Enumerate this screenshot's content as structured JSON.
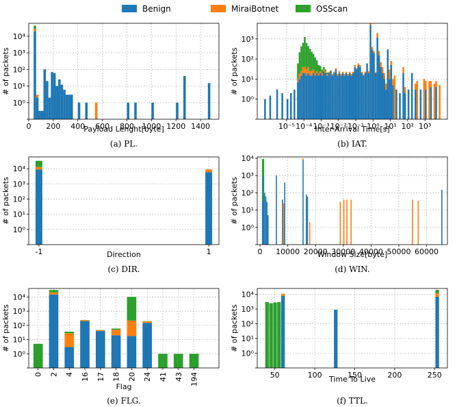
{
  "legend": [
    {
      "name": "Benign",
      "color": "#1f77b4"
    },
    {
      "name": "MiraiBotnet",
      "color": "#ff7f0e"
    },
    {
      "name": "OSScan",
      "color": "#2ca02c"
    }
  ],
  "chart_data": [
    {
      "id": "pl",
      "type": "bar",
      "title": "",
      "caption": "(a) PL.",
      "xlabel": "Payload Lenght[byte]",
      "ylabel": "# of packets",
      "xscale": "linear",
      "xlim": [
        0,
        1550
      ],
      "yscale": "symlog",
      "ylim": [
        0,
        60000
      ],
      "xticks": [
        0,
        200,
        400,
        600,
        800,
        1000,
        1200,
        1400
      ],
      "xtick_labels": [
        "0",
        "200",
        "400",
        "600",
        "800",
        "1000",
        "1200",
        "1400"
      ],
      "yticks": [
        1,
        10,
        100,
        1000,
        10000
      ],
      "ytick_labels": [
        "10⁰",
        "10¹",
        "10²",
        "10³",
        "10⁴"
      ],
      "bins": [
        {
          "x0": 40,
          "x1": 60,
          "b": 20000,
          "m": 8000,
          "o": 15000
        },
        {
          "x0": 60,
          "x1": 80,
          "b": 2,
          "m": 1
        },
        {
          "x0": 80,
          "x1": 100,
          "b": 0.5
        },
        {
          "x0": 100,
          "x1": 120,
          "b": 0.5
        },
        {
          "x0": 120,
          "x1": 140,
          "b": 100
        },
        {
          "x0": 140,
          "x1": 160,
          "b": 20
        },
        {
          "x0": 160,
          "x1": 180,
          "b": 2
        },
        {
          "x0": 180,
          "x1": 200,
          "b": 70
        },
        {
          "x0": 200,
          "x1": 220,
          "b": 60
        },
        {
          "x0": 220,
          "x1": 240,
          "b": 10
        },
        {
          "x0": 240,
          "x1": 260,
          "b": 25
        },
        {
          "x0": 260,
          "x1": 280,
          "b": 12
        },
        {
          "x0": 280,
          "x1": 300,
          "b": 6
        },
        {
          "x0": 300,
          "x1": 320,
          "b": 3
        },
        {
          "x0": 320,
          "x1": 340,
          "b": 3
        },
        {
          "x0": 340,
          "x1": 360,
          "b": 3
        },
        {
          "x0": 400,
          "x1": 420,
          "b": 1
        },
        {
          "x0": 460,
          "x1": 480,
          "b": 1
        },
        {
          "x0": 540,
          "x1": 560,
          "m": 1
        },
        {
          "x0": 800,
          "x1": 820,
          "b": 1
        },
        {
          "x0": 860,
          "x1": 880,
          "b": 1
        },
        {
          "x0": 1000,
          "x1": 1020,
          "b": 1
        },
        {
          "x0": 1200,
          "x1": 1220,
          "b": 1
        },
        {
          "x0": 1260,
          "x1": 1280,
          "b": 40
        },
        {
          "x0": 1460,
          "x1": 1480,
          "b": 15
        }
      ]
    },
    {
      "id": "iat",
      "type": "bar",
      "title": "",
      "caption": "(b) IAT.",
      "xlabel": "Inter-Arrival Time[s]",
      "ylabel": "# of packets",
      "xscale": "log",
      "xlim": [
        -6.7,
        4.3
      ],
      "yscale": "symlog",
      "ylim": [
        0,
        6000
      ],
      "xticks": [
        -5,
        -4,
        -3,
        -2,
        -1,
        0,
        1,
        2,
        3
      ],
      "xtick_labels": [
        "10⁻⁵",
        "10⁻⁴",
        "10⁻³",
        "10⁻²",
        "10⁻¹",
        "10⁰",
        "10¹",
        "10²",
        "10³"
      ],
      "yticks": [
        1,
        10,
        100,
        1000
      ],
      "ytick_labels": [
        "10⁰",
        "10¹",
        "10²",
        "10³"
      ],
      "bins": [
        {
          "x0": -6.3,
          "x1": -6.2,
          "b": 1
        },
        {
          "x0": -6.0,
          "x1": -5.9,
          "b": 1.5
        },
        {
          "x0": -5.6,
          "x1": -5.5,
          "b": 3
        },
        {
          "x0": -5.3,
          "x1": -5.2,
          "b": 2
        },
        {
          "x0": -5.0,
          "x1": -4.9,
          "b": 1
        },
        {
          "x0": -4.8,
          "x1": -4.7,
          "b": 2
        },
        {
          "x0": -4.6,
          "x1": -4.5,
          "b": 3
        },
        {
          "x0": -4.4,
          "x1": -4.3,
          "b": 7,
          "m": 3,
          "o": 50
        },
        {
          "x0": -4.3,
          "x1": -4.2,
          "b": 10,
          "m": 8,
          "o": 200
        },
        {
          "x0": -4.2,
          "x1": -4.1,
          "b": 15,
          "m": 10,
          "o": 400
        },
        {
          "x0": -4.1,
          "x1": -4.0,
          "b": 20,
          "m": 20,
          "o": 600
        },
        {
          "x0": -4.0,
          "x1": -3.9,
          "b": 20,
          "m": 20,
          "o": 1200
        },
        {
          "x0": -3.9,
          "x1": -3.8,
          "b": 15,
          "m": 15,
          "o": 600
        },
        {
          "x0": -3.8,
          "x1": -3.7,
          "b": 20,
          "m": 20,
          "o": 400
        },
        {
          "x0": -3.7,
          "x1": -3.6,
          "b": 15,
          "m": 10,
          "o": 300
        },
        {
          "x0": -3.6,
          "x1": -3.5,
          "b": 15,
          "m": 10,
          "o": 200
        },
        {
          "x0": -3.5,
          "x1": -3.4,
          "b": 20,
          "m": 10,
          "o": 150
        },
        {
          "x0": -3.4,
          "x1": -3.3,
          "b": 15,
          "m": 5,
          "o": 100
        },
        {
          "x0": -3.3,
          "x1": -3.2,
          "b": 20,
          "m": 5,
          "o": 60
        },
        {
          "x0": -3.2,
          "x1": -3.1,
          "b": 15,
          "m": 5,
          "o": 30
        },
        {
          "x0": -3.1,
          "x1": -3.0,
          "b": 20,
          "m": 5,
          "o": 20
        },
        {
          "x0": -3.0,
          "x1": -2.9,
          "b": 15,
          "m": 5,
          "o": 10
        },
        {
          "x0": -2.9,
          "x1": -2.8,
          "b": 25,
          "m": 5,
          "o": 10
        },
        {
          "x0": -2.8,
          "x1": -2.7,
          "b": 20,
          "m": 5,
          "o": 5
        },
        {
          "x0": -2.7,
          "x1": -2.6,
          "b": 15,
          "m": 3,
          "o": 3
        },
        {
          "x0": -2.6,
          "x1": -2.5,
          "b": 20,
          "m": 3
        },
        {
          "x0": -2.5,
          "x1": -2.4,
          "b": 25,
          "m": 3
        },
        {
          "x0": -2.4,
          "x1": -2.3,
          "b": 15,
          "m": 3
        },
        {
          "x0": -2.3,
          "x1": -2.2,
          "b": 20,
          "m": 3
        },
        {
          "x0": -2.2,
          "x1": -2.1,
          "b": 30,
          "m": 5
        },
        {
          "x0": -2.1,
          "x1": -2.0,
          "b": 15,
          "m": 3
        },
        {
          "x0": -2.0,
          "x1": -1.9,
          "b": 20,
          "m": 5
        },
        {
          "x0": -1.9,
          "x1": -1.8,
          "b": 15,
          "m": 3
        },
        {
          "x0": -1.8,
          "x1": -1.7,
          "b": 20,
          "m": 3
        },
        {
          "x0": -1.7,
          "x1": -1.6,
          "b": 15,
          "m": 3
        },
        {
          "x0": -1.6,
          "x1": -1.5,
          "b": 20,
          "m": 3
        },
        {
          "x0": -1.5,
          "x1": -1.4,
          "b": 15,
          "m": 3
        },
        {
          "x0": -1.4,
          "x1": -1.3,
          "b": 20,
          "m": 3
        },
        {
          "x0": -1.3,
          "x1": -1.2,
          "b": 15,
          "m": 3
        },
        {
          "x0": -1.2,
          "x1": -1.1,
          "b": 20,
          "m": 3
        },
        {
          "x0": -1.1,
          "x1": -1.0,
          "b": 40,
          "m": 10
        },
        {
          "x0": -1.0,
          "x1": -0.9,
          "b": 30,
          "m": 5
        },
        {
          "x0": -0.9,
          "x1": -0.8,
          "b": 50,
          "m": 10
        },
        {
          "x0": -0.8,
          "x1": -0.7,
          "b": 40,
          "m": 10
        },
        {
          "x0": -0.7,
          "x1": -0.6,
          "b": 20,
          "m": 3
        },
        {
          "x0": -0.6,
          "x1": -0.5,
          "b": 15,
          "m": 2
        },
        {
          "x0": -0.5,
          "x1": -0.4,
          "b": 20,
          "m": 3
        },
        {
          "x0": -0.4,
          "x1": -0.3,
          "b": 60
        },
        {
          "x0": -0.3,
          "x1": -0.2,
          "b": 20,
          "m": 5
        },
        {
          "x0": -0.2,
          "x1": -0.1,
          "b": 5000,
          "m": 2000
        },
        {
          "x0": -0.1,
          "x1": 0.0,
          "b": 300,
          "m": 100
        },
        {
          "x0": 0.0,
          "x1": 0.1,
          "b": 200,
          "m": 50
        },
        {
          "x0": 0.1,
          "x1": 0.2,
          "b": 20,
          "m": 2
        },
        {
          "x0": 0.2,
          "x1": 0.3,
          "b": 1200,
          "m": 800
        },
        {
          "x0": 0.3,
          "x1": 0.4,
          "b": 150,
          "m": 100
        },
        {
          "x0": 0.4,
          "x1": 0.5,
          "b": 40,
          "m": 30
        },
        {
          "x0": 0.5,
          "x1": 0.6,
          "b": 20,
          "m": 20
        },
        {
          "x0": 0.6,
          "x1": 0.7,
          "b": 10,
          "m": 10
        },
        {
          "x0": 0.7,
          "x1": 0.8,
          "b": 3,
          "m": 3
        },
        {
          "x0": 0.8,
          "x1": 0.9,
          "b": 300
        },
        {
          "x0": 0.9,
          "x1": 1.0,
          "b": 10,
          "m": 20
        },
        {
          "x0": 1.0,
          "x1": 1.1,
          "b": 50,
          "m": 30
        },
        {
          "x0": 1.1,
          "x1": 1.2,
          "b": 5,
          "m": 5
        },
        {
          "x0": 1.2,
          "x1": 1.3,
          "m": 15
        },
        {
          "x0": 1.3,
          "x1": 1.4,
          "b": 3
        },
        {
          "x0": 1.5,
          "x1": 1.6,
          "b": 2
        },
        {
          "x0": 1.7,
          "x1": 1.8,
          "b": 20,
          "m": 20
        },
        {
          "x0": 1.8,
          "x1": 1.9,
          "b": 2,
          "m": 2
        },
        {
          "x0": 2.0,
          "x1": 2.1,
          "b": 3
        },
        {
          "x0": 2.2,
          "x1": 2.3,
          "b": 20
        },
        {
          "x0": 2.4,
          "x1": 2.5,
          "b": 3,
          "m": 3
        },
        {
          "x0": 2.5,
          "x1": 2.6,
          "m": 8
        },
        {
          "x0": 2.7,
          "x1": 2.8,
          "b": 3
        },
        {
          "x0": 2.9,
          "x1": 3.0,
          "m": 10
        },
        {
          "x0": 3.0,
          "x1": 3.1,
          "b": 3,
          "m": 5
        },
        {
          "x0": 3.2,
          "x1": 3.3,
          "m": 8
        },
        {
          "x0": 3.3,
          "x1": 3.4,
          "b": 4,
          "m": 4
        },
        {
          "x0": 3.5,
          "x1": 3.6,
          "m": 6
        },
        {
          "x0": 3.6,
          "x1": 3.7,
          "b": 4,
          "m": 4
        },
        {
          "x0": 3.8,
          "x1": 3.9,
          "m": 5
        }
      ]
    },
    {
      "id": "dir",
      "type": "bar",
      "title": "",
      "caption": "(c) DIR.",
      "xlabel": "Direction",
      "ylabel": "# of packets",
      "xscale": "linear",
      "xlim": [
        -1.12,
        1.12
      ],
      "yscale": "symlog",
      "ylim": [
        0,
        60000
      ],
      "xticks": [
        -1,
        1
      ],
      "xtick_labels": [
        "-1",
        "1"
      ],
      "yticks": [
        1,
        10,
        100,
        1000,
        10000
      ],
      "ytick_labels": [
        "10⁰",
        "10¹",
        "10²",
        "10³",
        "10⁴"
      ],
      "bins": [
        {
          "x0": -1.04,
          "x1": -0.96,
          "b": 9000,
          "m": 4000,
          "o": 20000
        },
        {
          "x0": 0.96,
          "x1": 1.04,
          "b": 6000,
          "m": 3000,
          "o": 0
        }
      ]
    },
    {
      "id": "win",
      "type": "bar",
      "title": "",
      "caption": "(d) WIN.",
      "xlabel": "Window Size[byte]",
      "ylabel": "# of packets",
      "xscale": "linear",
      "xlim": [
        -1000,
        67500
      ],
      "yscale": "symlog",
      "ylim": [
        0,
        12000
      ],
      "xticks": [
        0,
        10000,
        20000,
        30000,
        40000,
        50000,
        60000
      ],
      "xtick_labels": [
        "0",
        "10000",
        "20000",
        "30000",
        "40000",
        "50000",
        "60000"
      ],
      "yticks": [
        1,
        10,
        100,
        1000,
        10000
      ],
      "ytick_labels": [
        "10⁰",
        "10¹",
        "10²",
        "10³",
        "10⁴"
      ],
      "bins": [
        {
          "x0": 700,
          "x1": 1100,
          "b": 30,
          "o": 9000
        },
        {
          "x0": 1100,
          "x1": 1500,
          "b": 1000,
          "o": 8000
        },
        {
          "x0": 1500,
          "x1": 1900,
          "b": 100
        },
        {
          "x0": 1900,
          "x1": 2300,
          "b": 60
        },
        {
          "x0": 2300,
          "x1": 2700,
          "b": 30
        },
        {
          "x0": 2700,
          "x1": 3100,
          "b": 5
        },
        {
          "x0": 5700,
          "x1": 6100,
          "b": 1000
        },
        {
          "x0": 7900,
          "x1": 8300,
          "b": 40
        },
        {
          "x0": 8300,
          "x1": 8700,
          "m": 25
        },
        {
          "x0": 8700,
          "x1": 9100,
          "b": 400
        },
        {
          "x0": 15300,
          "x1": 15700,
          "b": 8000,
          "m": 2000
        },
        {
          "x0": 16500,
          "x1": 16900,
          "b": 80
        },
        {
          "x0": 16900,
          "x1": 17300,
          "b": 60
        },
        {
          "x0": 17700,
          "x1": 18100,
          "m": 2
        },
        {
          "x0": 28700,
          "x1": 29100,
          "m": 30
        },
        {
          "x0": 30000,
          "x1": 30400,
          "m": 40
        },
        {
          "x0": 31100,
          "x1": 31500,
          "m": 40
        },
        {
          "x0": 32600,
          "x1": 33000,
          "m": 40
        },
        {
          "x0": 54700,
          "x1": 55100,
          "m": 40
        },
        {
          "x0": 56800,
          "x1": 57200,
          "m": 35
        },
        {
          "x0": 65300,
          "x1": 65700,
          "b": 150
        }
      ]
    },
    {
      "id": "flg",
      "type": "bar",
      "title": "",
      "caption": "(e) FLG.",
      "xlabel": "Flag",
      "ylabel": "# of packets",
      "xscale": "category",
      "xlim": [
        -0.6,
        11.6
      ],
      "yscale": "symlog",
      "ylim": [
        0,
        40000
      ],
      "categories": [
        "0",
        "2",
        "4",
        "16",
        "17",
        "18",
        "20",
        "24",
        "41",
        "43",
        "194"
      ],
      "yticks": [
        1,
        10,
        100,
        1000,
        10000
      ],
      "ytick_labels": [
        "10⁰",
        "10¹",
        "10²",
        "10³",
        "10⁴"
      ],
      "bins": [
        {
          "x0": -0.3,
          "x1": 0.3,
          "o": 5
        },
        {
          "x0": 0.7,
          "x1": 1.3,
          "b": 15000,
          "m": 6000,
          "o": 10000
        },
        {
          "x0": 1.7,
          "x1": 2.3,
          "b": 3,
          "m": 25,
          "o": 8
        },
        {
          "x0": 2.7,
          "x1": 3.3,
          "b": 200,
          "m": 30,
          "o": 10
        },
        {
          "x0": 3.7,
          "x1": 4.3,
          "b": 40,
          "m": 5,
          "o": 2
        },
        {
          "x0": 4.7,
          "x1": 5.3,
          "b": 20,
          "m": 30,
          "o": 10
        },
        {
          "x0": 5.7,
          "x1": 6.3,
          "b": 18,
          "m": 200,
          "o": 10000
        },
        {
          "x0": 6.7,
          "x1": 7.3,
          "b": 150,
          "m": 40,
          "o": 10
        },
        {
          "x0": 7.7,
          "x1": 8.3,
          "o": 1
        },
        {
          "x0": 8.7,
          "x1": 9.3,
          "o": 1
        },
        {
          "x0": 9.7,
          "x1": 10.3,
          "o": 1
        }
      ]
    },
    {
      "id": "ttl",
      "type": "bar",
      "title": "",
      "caption": "(f) TTL.",
      "xlabel": "Time To Live",
      "ylabel": "# of packets",
      "xscale": "linear",
      "xlim": [
        28,
        266
      ],
      "yscale": "symlog",
      "ylim": [
        0,
        25000
      ],
      "xticks": [
        50,
        100,
        150,
        200,
        250
      ],
      "xtick_labels": [
        "50",
        "100",
        "150",
        "200",
        "250"
      ],
      "yticks": [
        1,
        10,
        100,
        1000,
        10000
      ],
      "ytick_labels": [
        "10⁰",
        "10¹",
        "10²",
        "10³",
        "10⁴"
      ],
      "bins": [
        {
          "x0": 38,
          "x1": 42.5,
          "o": 3000
        },
        {
          "x0": 43,
          "x1": 47.5,
          "o": 2500
        },
        {
          "x0": 48,
          "x1": 52.5,
          "o": 2800
        },
        {
          "x0": 53,
          "x1": 57.5,
          "o": 3000
        },
        {
          "x0": 58,
          "x1": 62.5,
          "b": 8000,
          "m": 3000,
          "o": 0
        },
        {
          "x0": 124,
          "x1": 128.5,
          "b": 900
        },
        {
          "x0": 251,
          "x1": 255.5,
          "b": 7000,
          "m": 5000,
          "o": 8000
        }
      ]
    }
  ]
}
